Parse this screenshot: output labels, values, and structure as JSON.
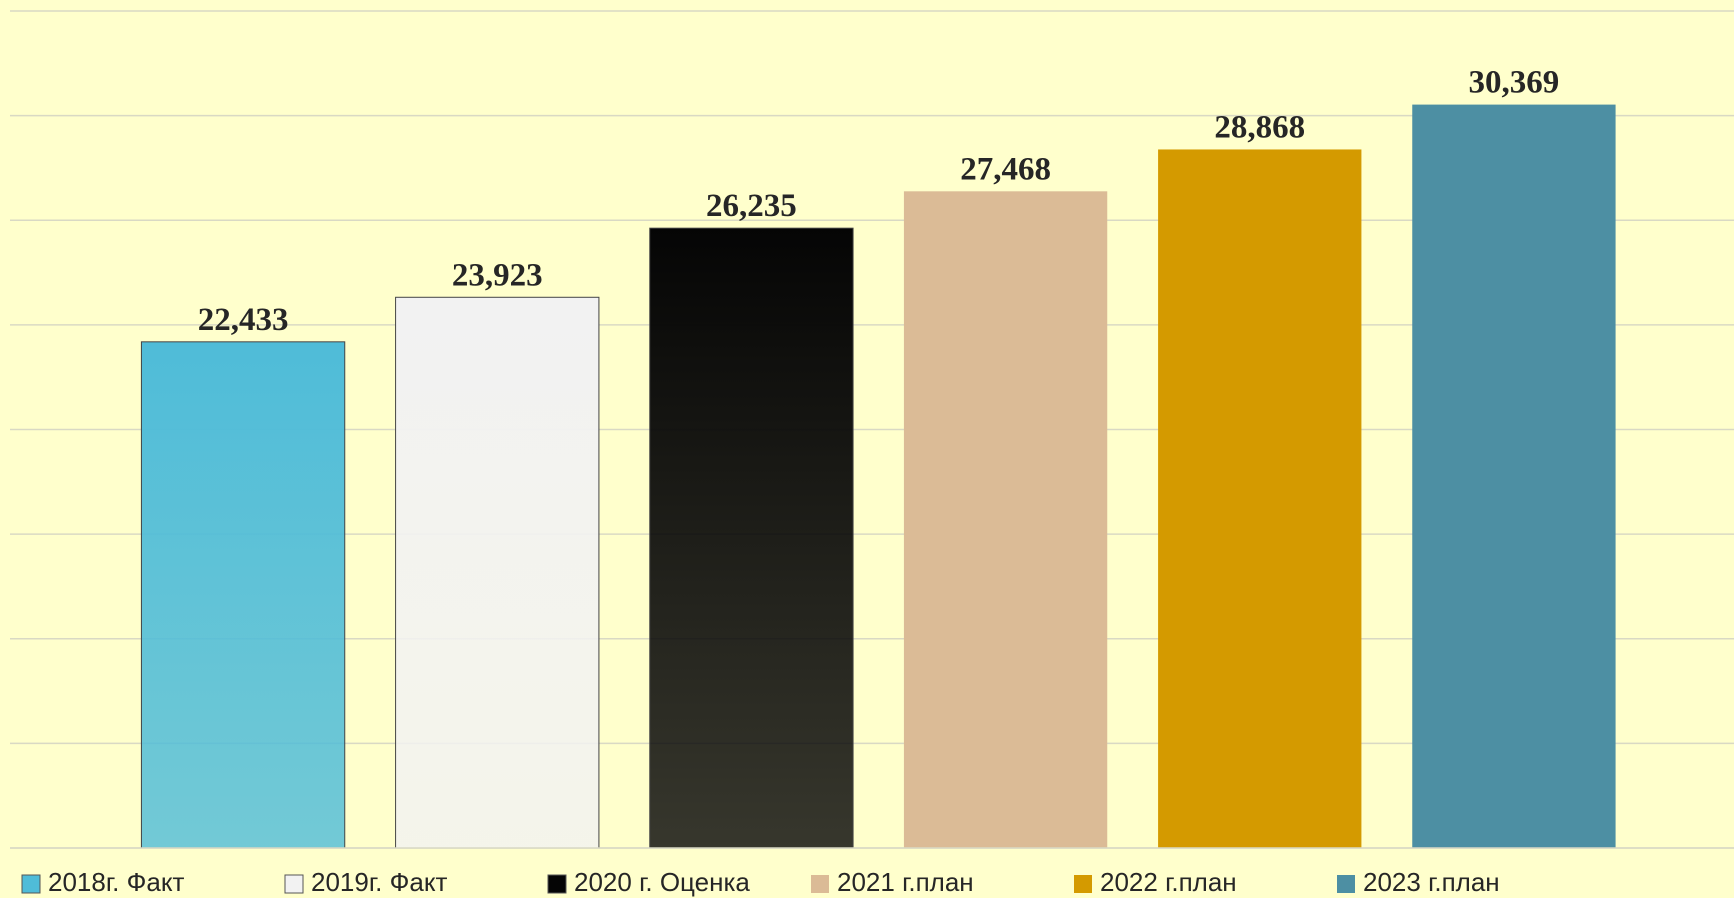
{
  "chart_data": {
    "type": "bar",
    "categories": [
      null
    ],
    "series": [
      {
        "name": "2018г. Факт",
        "color": "#4fbcd8",
        "values": [
          22.433
        ],
        "value_labels": [
          "22,433"
        ]
      },
      {
        "name": "2019г. Факт",
        "color": "#f2f2f2",
        "values": [
          23.923
        ],
        "value_labels": [
          "23,923"
        ]
      },
      {
        "name": "2020 г. Оценка",
        "color": "#050505",
        "values": [
          26.235
        ],
        "value_labels": [
          "26,235"
        ]
      },
      {
        "name": "2021 г.план",
        "color": "#dbbb96",
        "values": [
          27.468
        ],
        "value_labels": [
          "27,468"
        ]
      },
      {
        "name": "2022 г.план",
        "color": "#d49a00",
        "values": [
          28.868
        ],
        "value_labels": [
          "28,868"
        ]
      },
      {
        "name": "2023 г.план",
        "color": "#4d8fa3",
        "values": [
          30.369
        ],
        "value_labels": [
          "30,369"
        ]
      }
    ],
    "ylim": [
      5.5,
      33.5
    ],
    "yticks": [
      5.5,
      9,
      12.5,
      16,
      19.5,
      23,
      26.5,
      30,
      33.5
    ],
    "grid": true,
    "legend": "bottom"
  }
}
